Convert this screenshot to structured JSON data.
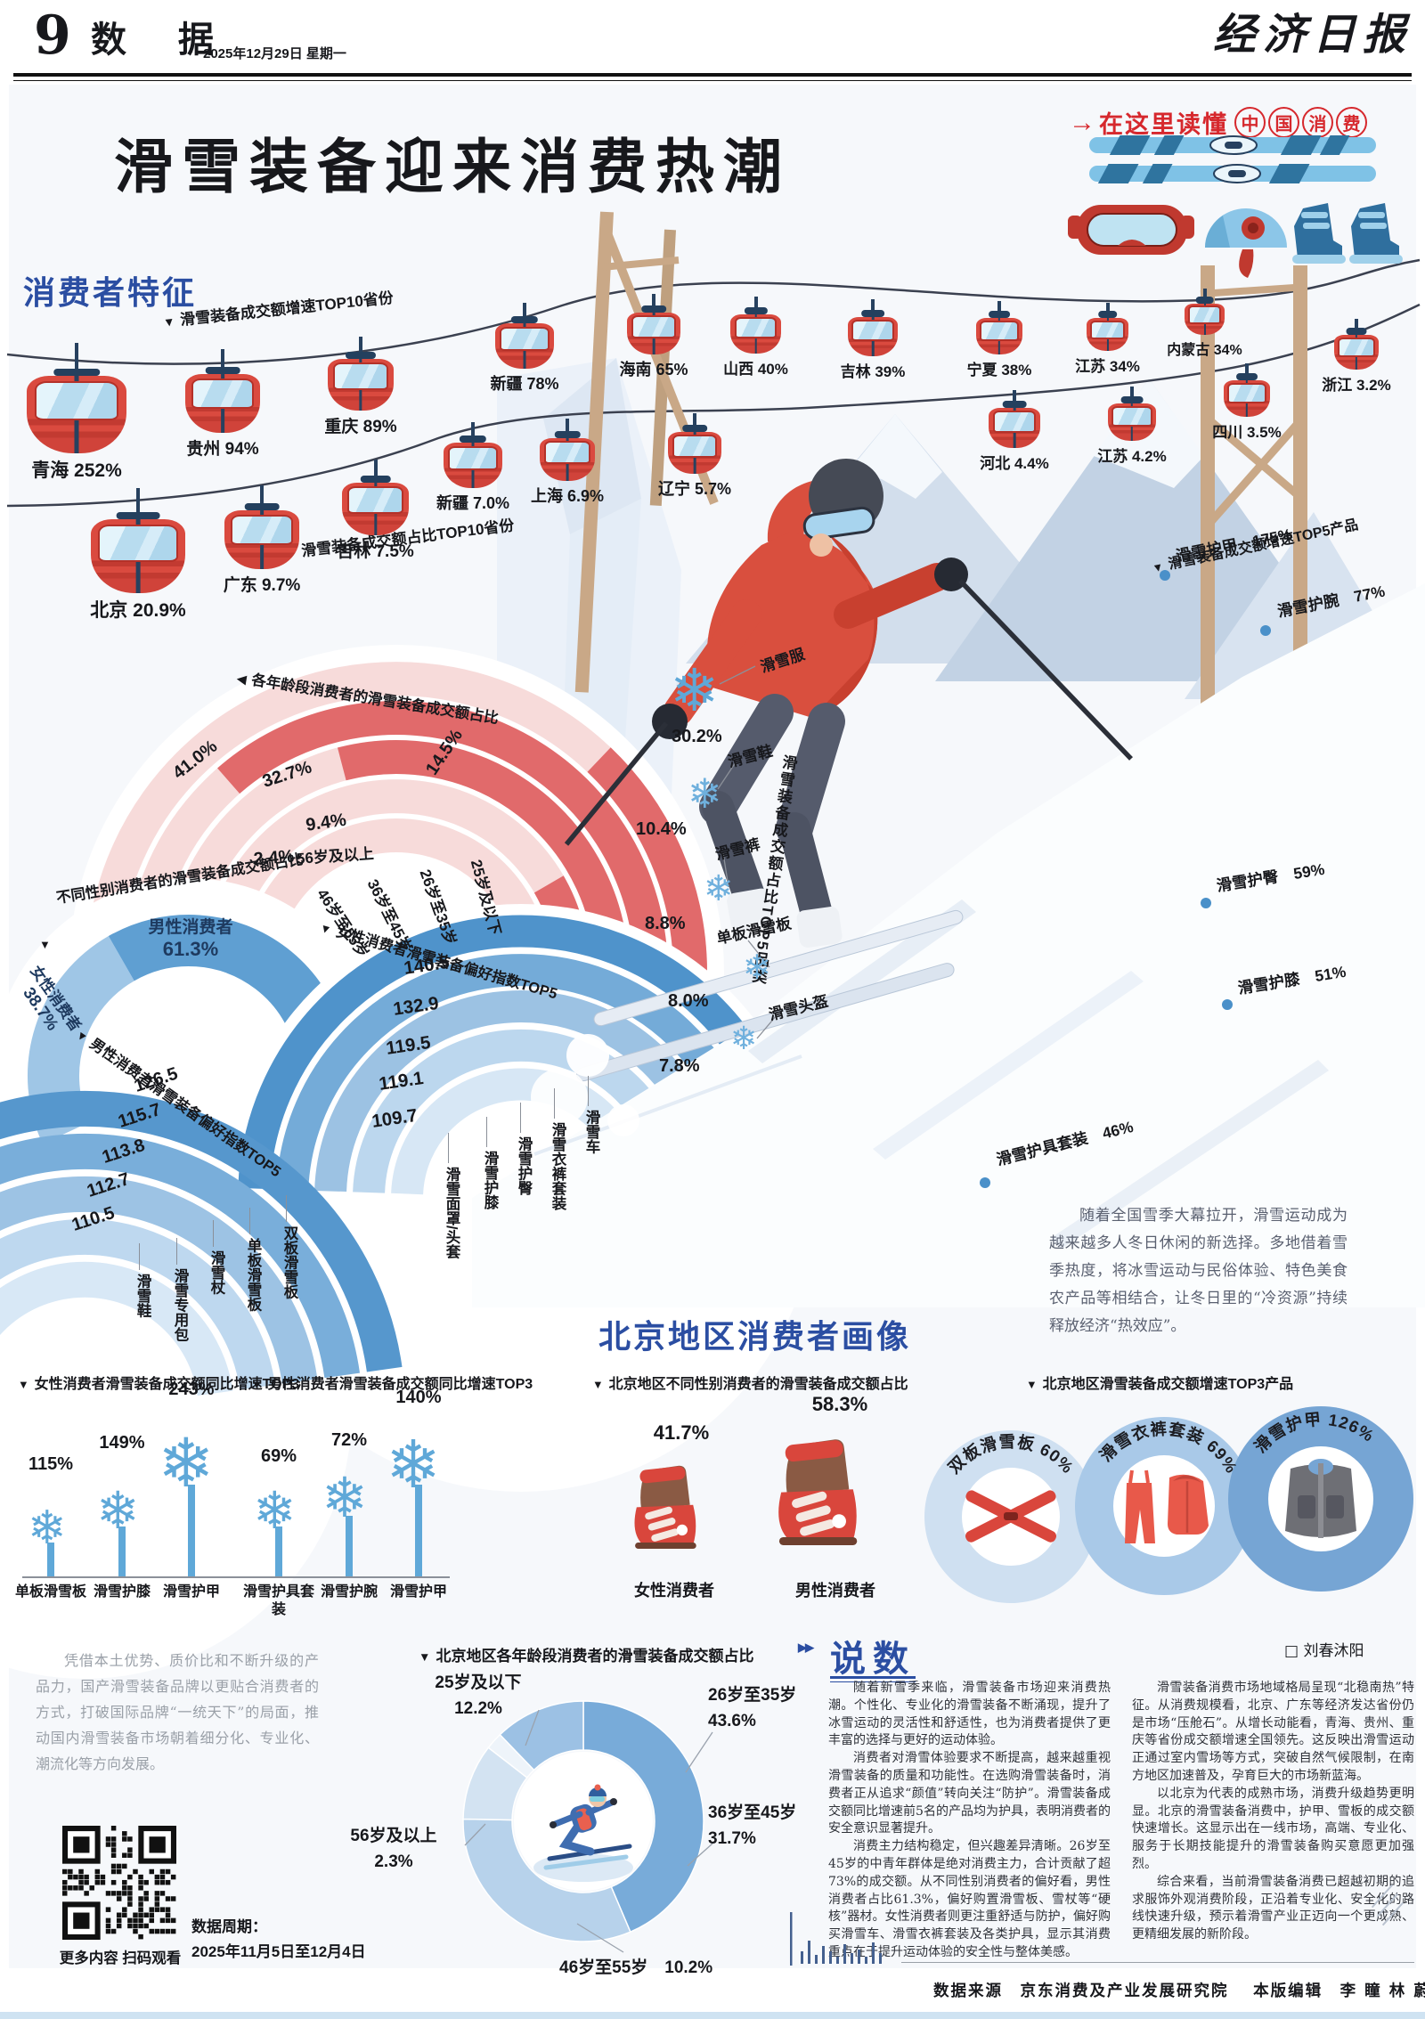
{
  "header": {
    "page_no": "9",
    "section": "数 据",
    "date": "2025年12月29日  星期一",
    "brand": "经济日报"
  },
  "hero": {
    "title": "滑雪装备迎来消费热潮",
    "badge_prefix": "在这里读懂",
    "badge_circled": [
      "中",
      "国",
      "消",
      "费"
    ]
  },
  "section_headings": {
    "consumer": "消费者特征",
    "beijing": "北京地区消费者画像",
    "commentary": "说数"
  },
  "chart_data": [
    {
      "id": "growth_top10_provinces",
      "type": "pictogram-cablecar",
      "title": "滑雪装备成交额增速TOP10省份",
      "categories": [
        "青海",
        "贵州",
        "重庆",
        "新疆",
        "海南",
        "山西",
        "吉林",
        "宁夏",
        "江苏",
        "内蒙古"
      ],
      "values": [
        252,
        94,
        89,
        78,
        65,
        40,
        39,
        38,
        34,
        34
      ],
      "display": [
        "252%",
        "94%",
        "89%",
        "78%",
        "65%",
        "40%",
        "39%",
        "38%",
        "34%",
        "34%"
      ]
    },
    {
      "id": "share_top10_provinces",
      "type": "pictogram-cablecar",
      "title": "滑雪装备成交额占比TOP10省份",
      "categories": [
        "北京",
        "广东",
        "吉林",
        "新疆",
        "上海",
        "辽宁",
        "河北",
        "江苏",
        "四川",
        "浙江"
      ],
      "values": [
        20.9,
        9.7,
        7.5,
        7.0,
        6.9,
        5.7,
        4.4,
        4.2,
        3.5,
        3.2
      ],
      "display": [
        "20.9%",
        "9.7%",
        "7.5%",
        "7.0%",
        "6.9%",
        "5.7%",
        "4.4%",
        "4.2%",
        "3.5%",
        "3.2%"
      ]
    },
    {
      "id": "age_share",
      "type": "radial-fan",
      "title": "各年龄段消费者的滑雪装备成交额占比",
      "categories": [
        "25岁及以下",
        "26岁至35岁",
        "36岁至45岁",
        "46岁至55岁",
        "56岁及以上"
      ],
      "values": [
        14.5,
        41.0,
        32.7,
        9.4,
        2.4
      ],
      "display": [
        "14.5%",
        "41.0%",
        "32.7%",
        "9.4%",
        "2.4%"
      ]
    },
    {
      "id": "gender_share",
      "type": "radial-fan",
      "title": "不同性别消费者的滑雪装备成交额占比",
      "categories": [
        "男性消费者",
        "女性消费者"
      ],
      "values": [
        61.3,
        38.7
      ],
      "display": [
        "61.3%",
        "38.7%"
      ]
    },
    {
      "id": "female_preference_top5",
      "type": "radial-fan",
      "title": "女性消费者滑雪装备偏好指数TOP5",
      "categories": [
        "滑雪车",
        "滑雪衣裤套装",
        "滑雪护臀",
        "滑雪护膝",
        "滑雪面罩/头套"
      ],
      "values": [
        140.5,
        132.9,
        119.5,
        119.1,
        109.7
      ]
    },
    {
      "id": "male_preference_top5",
      "type": "radial-fan",
      "title": "男性消费者滑雪装备偏好指数TOP5",
      "categories": [
        "双板滑雪板",
        "单板滑雪板",
        "滑雪杖",
        "滑雪专用包",
        "滑雪鞋"
      ],
      "values": [
        126.5,
        115.7,
        113.8,
        112.7,
        110.5
      ]
    },
    {
      "id": "category_share_top5",
      "type": "pictogram-snowflake",
      "title": "滑雪装备成交额占比TOP5品类",
      "categories": [
        "滑雪服",
        "滑雪鞋",
        "滑雪裤",
        "单板滑雪板",
        "滑雪头盔"
      ],
      "values": [
        30.2,
        10.4,
        8.8,
        8.0,
        7.8
      ],
      "display": [
        "30.2%",
        "10.4%",
        "8.8%",
        "8.0%",
        "7.8%"
      ]
    },
    {
      "id": "growth_top5_products",
      "type": "annotation-list",
      "title": "滑雪装备成交额增速TOP5产品",
      "categories": [
        "滑雪护甲",
        "滑雪护腕",
        "滑雪护臀",
        "滑雪护膝",
        "滑雪护具套装"
      ],
      "values": [
        175,
        77,
        59,
        51,
        46
      ],
      "display": [
        "175%",
        "77%",
        "59%",
        "51%",
        "46%"
      ]
    },
    {
      "id": "bj_female_growth_top3",
      "type": "pictogram-snowtree",
      "title": "女性消费者滑雪装备成交额同比增速TOP3",
      "categories": [
        "单板滑雪板",
        "滑雪护膝",
        "滑雪护甲"
      ],
      "values": [
        115,
        149,
        243
      ],
      "display": [
        "115%",
        "149%",
        "243%"
      ]
    },
    {
      "id": "bj_male_growth_top3",
      "type": "pictogram-snowtree",
      "title": "男性消费者滑雪装备成交额同比增速TOP3",
      "categories": [
        "滑雪护具套装",
        "滑雪护腕",
        "滑雪护甲"
      ],
      "values": [
        69,
        72,
        140
      ],
      "display": [
        "69%",
        "72%",
        "140%"
      ]
    },
    {
      "id": "bj_gender_share",
      "type": "pictogram-boot",
      "title": "北京地区不同性别消费者的滑雪装备成交额占比",
      "categories": [
        "女性消费者",
        "男性消费者"
      ],
      "values": [
        41.7,
        58.3
      ],
      "display": [
        "41.7%",
        "58.3%"
      ]
    },
    {
      "id": "bj_growth_top3_products",
      "type": "circle-badges",
      "title": "北京地区滑雪装备成交额增速TOP3产品",
      "categories": [
        "双板滑雪板",
        "滑雪衣裤套装",
        "滑雪护甲"
      ],
      "values": [
        60,
        69,
        126
      ],
      "display": [
        "60%",
        "69%",
        "126%"
      ]
    },
    {
      "id": "bj_age_share",
      "type": "donut",
      "title": "北京地区各年龄段消费者的滑雪装备成交额占比",
      "categories": [
        "26岁至35岁",
        "36岁至45岁",
        "46岁至55岁",
        "56岁及以上",
        "25岁及以下"
      ],
      "values": [
        43.6,
        31.7,
        10.2,
        2.3,
        12.2
      ],
      "display": [
        "43.6%",
        "31.7%",
        "10.2%",
        "2.3%",
        "12.2%"
      ]
    }
  ],
  "paragraphs": {
    "intro": "随着全国雪季大幕拉开，滑雪运动成为越来越多人冬日休闲的新选择。多地借着雪季热度，将冰雪运动与民俗体验、特色美食农产品等相结合，让冬日里的“冷资源”持续释放经济“热效应”。",
    "domestic": "凭借本土优势、质价比和不断升级的产品力，国产滑雪装备品牌以更贴合消费者的方式，打破国际品牌“一统天下”的局面，推动国内滑雪装备市场朝着细分化、专业化、潮流化等方向发展。"
  },
  "commentary": {
    "author": "□  刘春沐阳",
    "paragraphs": [
      "随着新雪季来临，滑雪装备市场迎来消费热潮。个性化、专业化的滑雪装备不断涌现，提升了冰雪运动的灵活性和舒适性，也为消费者提供了更丰富的选择与更好的运动体验。",
      "消费者对滑雪体验要求不断提高，越来越重视滑雪装备的质量和功能性。在选购滑雪装备时，消费者正从追求“颜值”转向关注“防护”。滑雪装备成交额同比增速前5名的产品均为护具，表明消费者的安全意识显著提升。",
      "消费主力结构稳定，但兴趣差异清晰。26岁至45岁的中青年群体是绝对消费主力，合计贡献了超73%的成交额。从不同性别消费者的偏好看，男性消费者占比61.3%，偏好购置滑雪板、雪杖等“硬核”器材。女性消费者则更注重舒适与防护，偏好购买滑雪车、滑雪衣裤套装及各类护具，显示其消费重点在于提升运动体验的安全性与整体美感。",
      "滑雪装备消费市场地域格局呈现“北稳南热”特征。从消费规模看，北京、广东等经济发达省份仍是市场“压舱石”。从增长动能看，青海、贵州、重庆等省份成交额增速全国领先。这反映出滑雪运动正通过室内雪场等方式，突破自然气候限制，在南方地区加速普及，孕育巨大的市场新蓝海。",
      "以北京为代表的成熟市场，消费升级趋势更明显。北京的滑雪装备消费中，护甲、雪板的成交额快速增长。这显示出在一线市场，高端、专业化、服务于长期技能提升的滑雪装备购买意愿更加强烈。",
      "综合来看，当前滑雪装备消费已超越初期的追求服饰外观消费阶段，正沿着专业化、安全化的路线快速升级，预示着滑雪产业正迈向一个更成熟、更精细发展的新阶段。"
    ]
  },
  "qr_block": {
    "caption": "更多内容 扫码观看",
    "period_label": "数据周期：",
    "period": "2025年11月5日至12月4日"
  },
  "footer": {
    "source_label": "数据来源",
    "source": "京东消费及产业发展研究院",
    "editor_label": "本版编辑",
    "editors": "李  瞳    林  蔚"
  }
}
